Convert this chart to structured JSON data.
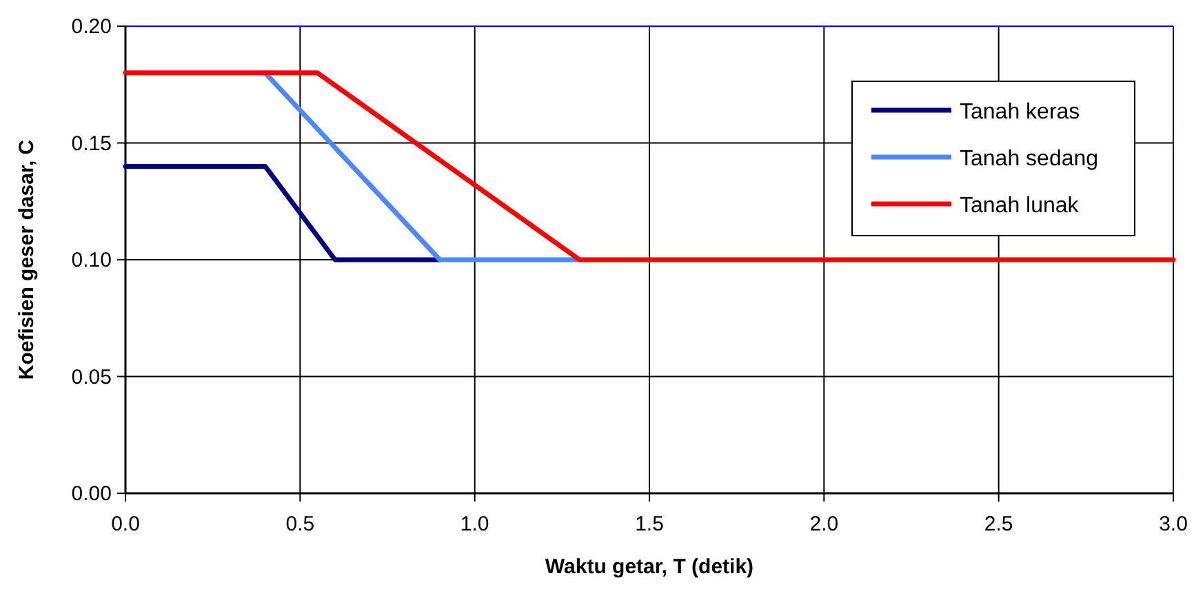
{
  "chart_data": {
    "type": "line",
    "xlabel": "Waktu getar, T (detik)",
    "ylabel": "Koefisien geser dasar, C",
    "xlim": [
      0,
      3
    ],
    "ylim": [
      0,
      0.2
    ],
    "xticks": [
      {
        "value": 0,
        "label": "0.0"
      },
      {
        "value": 0.5,
        "label": "0.5"
      },
      {
        "value": 1,
        "label": "1.0"
      },
      {
        "value": 1.5,
        "label": "1.5"
      },
      {
        "value": 2,
        "label": "2.0"
      },
      {
        "value": 2.5,
        "label": "2.5"
      },
      {
        "value": 3,
        "label": "3.0"
      }
    ],
    "yticks": [
      {
        "value": 0,
        "label": "0.00"
      },
      {
        "value": 0.05,
        "label": "0.05"
      },
      {
        "value": 0.1,
        "label": "0.10"
      },
      {
        "value": 0.15,
        "label": "0.15"
      },
      {
        "value": 0.2,
        "label": "0.20"
      }
    ],
    "grid": true,
    "legend": "top right",
    "marker": "none",
    "line_style": "solid",
    "series": [
      {
        "name": "Tanah keras",
        "color": "#000080",
        "x": [
          0,
          0.4,
          0.6,
          0.9
        ],
        "values": [
          0.14,
          0.14,
          0.1,
          0.1
        ]
      },
      {
        "name": "Tanah sedang",
        "color": "#4d88ff",
        "x": [
          0.4,
          0.9,
          1.3
        ],
        "values": [
          0.18,
          0.1,
          0.1
        ]
      },
      {
        "name": "Tanah lunak",
        "color": "#ff0000",
        "x": [
          0,
          0.55,
          1.3,
          3
        ],
        "values": [
          0.18,
          0.18,
          0.1,
          0.1
        ]
      }
    ]
  }
}
